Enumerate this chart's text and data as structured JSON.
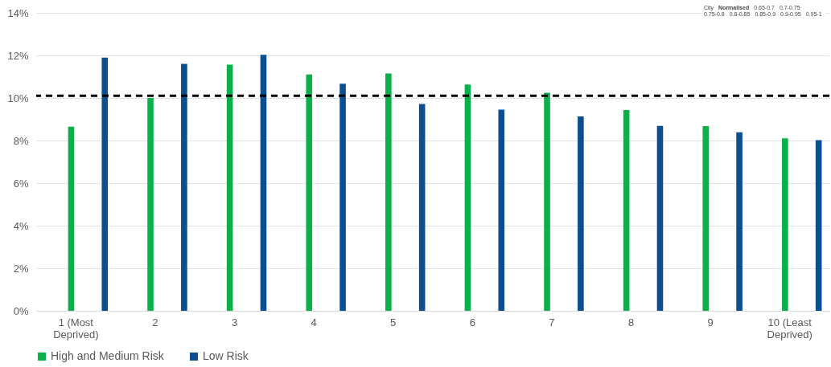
{
  "chart_data": {
    "type": "bar",
    "categories": [
      "1 (Most Deprived)",
      "2",
      "3",
      "4",
      "5",
      "6",
      "7",
      "8",
      "9",
      "10 (Least Deprived)"
    ],
    "series": [
      {
        "name": "High and Medium Risk",
        "color": "#0cb04a",
        "values": [
          8.65,
          10.0,
          11.57,
          11.1,
          11.15,
          10.63,
          10.25,
          9.43,
          8.68,
          8.1
        ]
      },
      {
        "name": "Low Risk",
        "color": "#0b4f91",
        "values": [
          11.9,
          11.6,
          12.03,
          10.67,
          9.72,
          9.45,
          9.13,
          8.69,
          8.39,
          8.02
        ]
      }
    ],
    "ylim": [
      0,
      14
    ],
    "yticks": [
      {
        "value": 0,
        "label": "0%"
      },
      {
        "value": 2,
        "label": "2%"
      },
      {
        "value": 4,
        "label": "4%"
      },
      {
        "value": 6,
        "label": "6%"
      },
      {
        "value": 8,
        "label": "8%"
      },
      {
        "value": 10,
        "label": "10%"
      },
      {
        "value": 12,
        "label": "12%"
      },
      {
        "value": 14,
        "label": "14%"
      }
    ],
    "ref_lines": [
      {
        "axis": "y",
        "value": 10.1,
        "color": "#000000",
        "line_style": "dashed"
      }
    ],
    "annotations": [
      "City",
      "Normalised",
      "0.65-0.7",
      "0.7-0.75",
      "0.75-0.8",
      "0.8-0.85",
      "0.85-0.9",
      "0.9-0.95",
      "0.95-1"
    ],
    "grid": "y",
    "legend": "bottom"
  }
}
